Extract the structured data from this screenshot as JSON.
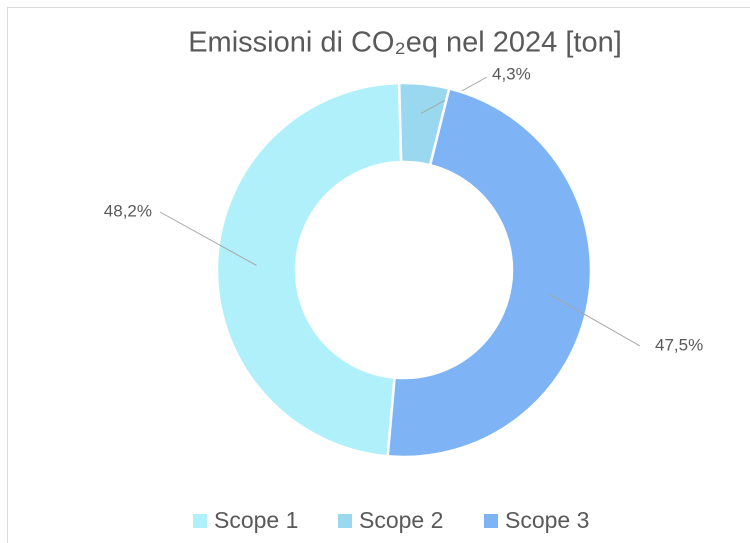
{
  "chart_data": {
    "type": "donut",
    "title": "Emissioni di CO₂eq nel 2024 [ton]",
    "categories": [
      "Scope 1",
      "Scope 2",
      "Scope 3"
    ],
    "values": [
      48.2,
      4.3,
      47.5
    ],
    "value_labels": [
      "48,2%",
      "4,3%",
      "47,5%"
    ],
    "colors": [
      "#b0f0fb",
      "#9ad8f0",
      "#7eb4f6"
    ],
    "legend": "bottom"
  }
}
